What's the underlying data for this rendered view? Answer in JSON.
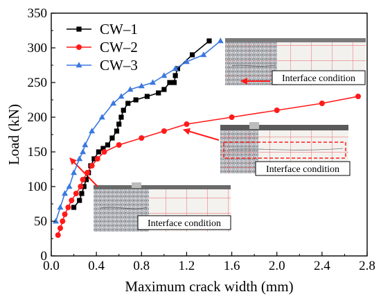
{
  "chart_data": {
    "type": "line",
    "xlabel": "Maximum crack width (mm)",
    "ylabel": "Load (kN)",
    "xlim": [
      0.0,
      2.8
    ],
    "ylim": [
      0,
      350
    ],
    "xticks": [
      "0.0",
      "0.4",
      "0.8",
      "1.2",
      "1.6",
      "2.0",
      "2.4",
      "2.8"
    ],
    "yticks": [
      "0",
      "50",
      "100",
      "150",
      "200",
      "250",
      "300",
      "350"
    ],
    "legend_position": "top-left",
    "series": [
      {
        "name": "CW–1",
        "color": "#000000",
        "marker": "square",
        "x": [
          0.2,
          0.25,
          0.27,
          0.29,
          0.31,
          0.33,
          0.35,
          0.38,
          0.42,
          0.46,
          0.5,
          0.54,
          0.58,
          0.6,
          0.62,
          0.64,
          0.68,
          0.75,
          0.85,
          0.95,
          1.0,
          1.05,
          1.09,
          1.1,
          1.12,
          1.25,
          1.4
        ],
        "y": [
          70,
          80,
          90,
          100,
          110,
          120,
          130,
          140,
          150,
          155,
          160,
          170,
          180,
          190,
          200,
          210,
          220,
          225,
          230,
          235,
          240,
          250,
          250,
          260,
          270,
          290,
          310
        ]
      },
      {
        "name": "CW–2",
        "color": "#ff1a1a",
        "marker": "circle",
        "x": [
          0.06,
          0.08,
          0.1,
          0.12,
          0.15,
          0.18,
          0.22,
          0.26,
          0.28,
          0.32,
          0.36,
          0.41,
          0.47,
          0.6,
          0.8,
          1.0,
          1.2,
          1.6,
          2.0,
          2.4,
          2.72
        ],
        "y": [
          30,
          40,
          50,
          60,
          70,
          80,
          90,
          100,
          110,
          120,
          130,
          140,
          150,
          160,
          170,
          180,
          190,
          200,
          210,
          220,
          230
        ]
      },
      {
        "name": "CW–3",
        "color": "#3a78e0",
        "marker": "triangle",
        "x": [
          0.04,
          0.08,
          0.12,
          0.16,
          0.2,
          0.25,
          0.28,
          0.3,
          0.36,
          0.45,
          0.55,
          0.62,
          0.7,
          0.8,
          0.9,
          1.0,
          1.1,
          1.2,
          1.35,
          1.5
        ],
        "y": [
          50,
          70,
          90,
          100,
          120,
          140,
          150,
          160,
          180,
          200,
          220,
          230,
          240,
          245,
          250,
          260,
          270,
          280,
          290,
          310
        ]
      }
    ],
    "annotations": [
      {
        "text": "Interface condition"
      },
      {
        "text": "Interface condition"
      },
      {
        "text": "Interface condition"
      }
    ]
  }
}
